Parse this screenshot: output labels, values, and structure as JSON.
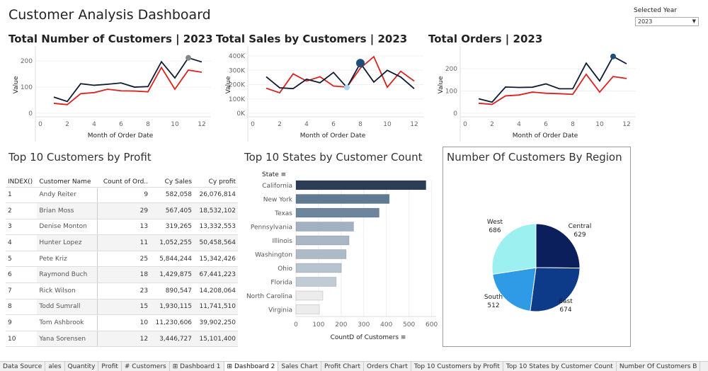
{
  "title": "Customer Analysis Dashboard",
  "year_filter": {
    "label": "Selected Year",
    "value": "2023"
  },
  "colors": {
    "current": "#0f1b33",
    "previous": "#d9231f",
    "accent": "#1f4e7a"
  },
  "line_charts": [
    {
      "title": "Total Number of Customers | 2023",
      "xlabel": "Month of Order Date",
      "ylabel": "Value",
      "xticks": [
        "0",
        "2",
        "4",
        "6",
        "8",
        "10",
        "12"
      ],
      "yticks": [
        {
          "v": 0,
          "l": "0"
        },
        {
          "v": 100,
          "l": "100"
        },
        {
          "v": 200,
          "l": "200"
        }
      ],
      "ymax": 230,
      "x": [
        1,
        2,
        3,
        4,
        5,
        6,
        7,
        8,
        9,
        10,
        11,
        12
      ],
      "series": [
        {
          "name": "Current",
          "values": [
            62,
            45,
            113,
            107,
            111,
            116,
            100,
            102,
            197,
            135,
            212,
            196
          ]
        },
        {
          "name": "Previous",
          "values": [
            38,
            33,
            75,
            79,
            92,
            86,
            85,
            82,
            175,
            92,
            165,
            157
          ]
        }
      ],
      "highlight_month": 11
    },
    {
      "title": "Total Sales by Customers | 2023",
      "xlabel": "Month of Order Date",
      "ylabel": "Value",
      "xticks": [
        "0",
        "2",
        "4",
        "6",
        "8",
        "10",
        "12"
      ],
      "yticks": [
        {
          "v": 0,
          "l": "0K"
        },
        {
          "v": 100000,
          "l": "100K"
        },
        {
          "v": 200000,
          "l": "200K"
        },
        {
          "v": 300000,
          "l": "300K"
        },
        {
          "v": 400000,
          "l": "400K"
        }
      ],
      "ymax": 420000,
      "x": [
        1,
        2,
        3,
        4,
        5,
        6,
        7,
        8,
        9,
        10,
        11,
        12
      ],
      "series": [
        {
          "name": "Current",
          "values": [
            255000,
            178000,
            172000,
            238000,
            213000,
            285000,
            180000,
            350000,
            218000,
            300000,
            253000,
            172000
          ]
        },
        {
          "name": "Previous",
          "values": [
            175000,
            143000,
            275000,
            225000,
            255000,
            190000,
            183000,
            315000,
            395000,
            182000,
            293000,
            225000
          ]
        }
      ],
      "highlight_month": 8,
      "low_month": 7
    },
    {
      "title": "Total Orders | 2023",
      "xlabel": "Month of Order Date",
      "ylabel": "Value",
      "xticks": [
        "0",
        "2",
        "4",
        "6",
        "8",
        "10",
        "12"
      ],
      "yticks": [
        {
          "v": 0,
          "l": "0"
        },
        {
          "v": 100,
          "l": "100"
        },
        {
          "v": 200,
          "l": "200"
        }
      ],
      "ymax": 270,
      "x": [
        1,
        2,
        3,
        4,
        5,
        6,
        7,
        8,
        9,
        10,
        11,
        12
      ],
      "series": [
        {
          "name": "Current",
          "values": [
            65,
            50,
            118,
            116,
            117,
            132,
            110,
            110,
            225,
            145,
            255,
            222
          ]
        },
        {
          "name": "Previous",
          "values": [
            45,
            40,
            78,
            82,
            95,
            90,
            88,
            85,
            175,
            95,
            165,
            156
          ]
        }
      ],
      "highlight_month": 11
    }
  ],
  "customers_table": {
    "title": "Top 10 Customers by Profit",
    "columns": [
      "INDEX()",
      "Customer Name",
      "Count of Ord..",
      "Cy Sales",
      "Cy profit"
    ],
    "rows": [
      [
        "1",
        "Andy Reiter",
        "9",
        "582,058",
        "26,076,814"
      ],
      [
        "2",
        "Brian Moss",
        "29",
        "567,405",
        "18,532,102"
      ],
      [
        "3",
        "Denise Monton",
        "13",
        "319,265",
        "13,332,553"
      ],
      [
        "4",
        "Hunter Lopez",
        "11",
        "1,052,255",
        "50,458,564"
      ],
      [
        "5",
        "Pete Kriz",
        "25",
        "5,844,244",
        "15,342,426"
      ],
      [
        "6",
        "Raymond Buch",
        "18",
        "1,429,875",
        "67,441,223"
      ],
      [
        "7",
        "Rick Wilson",
        "23",
        "890,547",
        "14,208,064"
      ],
      [
        "8",
        "Todd Sumrall",
        "15",
        "1,930,115",
        "11,741,510"
      ],
      [
        "9",
        "Tom Ashbrook",
        "10",
        "11,230,606",
        "39,902,250"
      ],
      [
        "10",
        "Yana Sorensen",
        "12",
        "3,446,727",
        "15,101,400"
      ]
    ]
  },
  "chart_data": [
    {
      "type": "bar",
      "title": "Top 10 States by Customer Count",
      "ylabel": "State",
      "xlabel": "CountD of Customers",
      "categories": [
        "California",
        "New York",
        "Texas",
        "Pennsylvania",
        "Illinois",
        "Washington",
        "Ohio",
        "Florida",
        "North Carolina",
        "Virginia"
      ],
      "values": [
        575,
        413,
        368,
        255,
        235,
        222,
        201,
        178,
        119,
        104
      ],
      "xticks": [
        "0",
        "100",
        "200",
        "300",
        "400",
        "500",
        "600"
      ],
      "xlim": [
        0,
        620
      ]
    },
    {
      "type": "pie",
      "title": "Number Of Customers By Region",
      "categories": [
        "Central",
        "East",
        "South",
        "West"
      ],
      "values": [
        629,
        674,
        512,
        686
      ],
      "labels": [
        "629",
        "674",
        "512",
        "686"
      ],
      "colors": [
        "#0b1f5c",
        "#0e3a8a",
        "#2f9ae6",
        "#9cf0ef"
      ]
    }
  ],
  "tabs": [
    "Data Source",
    "ales",
    "Quantity",
    "Profit",
    "# Customers",
    "⊞ Dashboard 1",
    "⊞ Dashboard 2",
    "Sales Chart",
    "Profit Chart",
    "Orders Chart",
    "Top 10 Customers by Profit",
    "Top 10 States by Customer Count",
    "Number Of Customers B"
  ],
  "active_tab": 6
}
